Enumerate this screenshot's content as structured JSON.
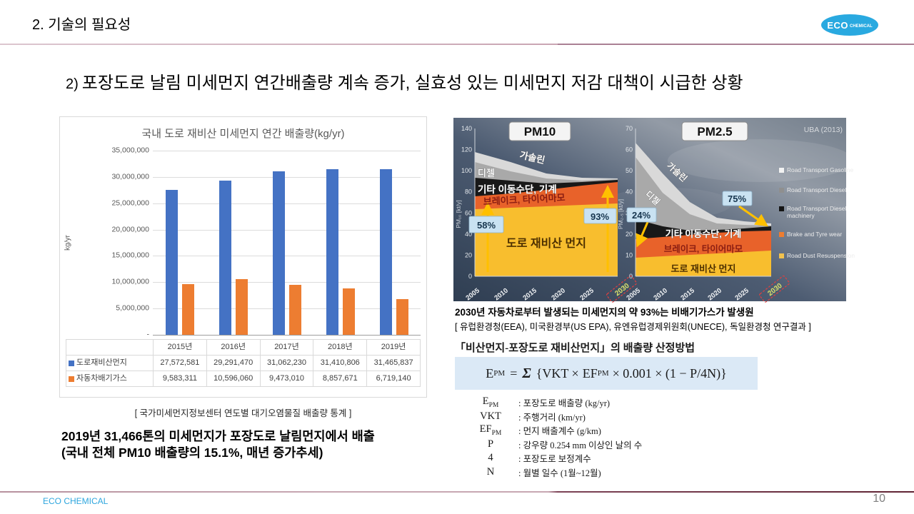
{
  "header": {
    "title": "2. 기술의 필요성",
    "logo_text": "ECO",
    "logo_sub": "CHEMICAL"
  },
  "subtitle": {
    "prefix": "2)",
    "text": "포장도로 날림 미세먼지 연간배출량 계속 증가, 실효성 있는 미세먼지 저감 대책이 시급한 상황"
  },
  "left_panel": {
    "caption": "[ 국가미세먼지정보센터 연도별 대기오염물질 배출량 통계 ]",
    "note_line1": "2019년 31,466톤의 미세먼지가 포장도로 날림먼지에서 배출",
    "note_line2": "(국내 전체 PM10 배출량의 15.1%, 매년 증가추세)"
  },
  "chart_data": [
    {
      "type": "bar",
      "title": "국내 도로 재비산 미세먼지 연간 배출량(kg/yr)",
      "ylabel": "kg/yr",
      "ylim": [
        0,
        35000000
      ],
      "ytick_labels": [
        "35,000,000",
        "30,000,000",
        "25,000,000",
        "20,000,000",
        "15,000,000",
        "10,000,000",
        "5,000,000",
        "-"
      ],
      "categories": [
        "2015년",
        "2016년",
        "2017년",
        "2018년",
        "2019년"
      ],
      "series": [
        {
          "name": "도로재비산먼지",
          "color": "#4472C4",
          "values": [
            27572581,
            29291470,
            31062230,
            31410806,
            31465837
          ],
          "formatted": [
            "27,572,581",
            "29,291,470",
            "31,062,230",
            "31,410,806",
            "31,465,837"
          ]
        },
        {
          "name": "자동차배기가스",
          "color": "#ED7D31",
          "values": [
            9583311,
            10596060,
            9473010,
            8857671,
            6719140
          ],
          "formatted": [
            "9,583,311",
            "10,596,060",
            "9,473,010",
            "8,857,671",
            "6,719,140"
          ]
        }
      ],
      "grid": true,
      "legend_position": "table-left"
    },
    {
      "type": "area",
      "title": "PM10",
      "ylabel": "PM₁₀ [kt/y]",
      "ylim": [
        0,
        140
      ],
      "x": [
        2005,
        2010,
        2015,
        2020,
        2025,
        2030
      ],
      "stacked": true,
      "series": [
        {
          "name": "Road Dust Resuspension",
          "values": [
            65,
            66,
            67,
            68,
            70,
            71
          ]
        },
        {
          "name": "Brake and Tyre wear",
          "values": [
            13,
            14,
            15,
            17,
            19,
            21
          ]
        },
        {
          "name": "Road Transport Diesel machinery",
          "values": [
            18,
            13,
            8,
            5,
            3,
            2
          ]
        },
        {
          "name": "Road Transport Diesel",
          "values": [
            15,
            10,
            6,
            3,
            2,
            1
          ]
        },
        {
          "name": "Road Transport Gasoline",
          "values": [
            10,
            7,
            4,
            2,
            1,
            0.5
          ]
        }
      ],
      "annotations": [
        "58% (2005)",
        "93% (2030)"
      ]
    },
    {
      "type": "area",
      "title": "PM2.5",
      "ylabel": "PM₂.₅ [kt/y]",
      "ylim": [
        0,
        70
      ],
      "x": [
        2005,
        2010,
        2015,
        2020,
        2025,
        2030
      ],
      "stacked": true,
      "series": [
        {
          "name": "Road Dust Resuspension",
          "values": [
            9,
            9.5,
            10,
            10.5,
            11,
            12.5
          ]
        },
        {
          "name": "Brake and Tyre wear",
          "values": [
            9,
            9.5,
            10,
            10,
            10,
            9.7
          ]
        },
        {
          "name": "Road Transport Diesel machinery",
          "values": [
            9.7,
            7,
            5,
            3.5,
            2.5,
            2
          ]
        },
        {
          "name": "Road Transport Diesel",
          "values": [
            30,
            18,
            10,
            5,
            2,
            0.5
          ]
        },
        {
          "name": "Road Transport Gasoline",
          "values": [
            7,
            5,
            3,
            2,
            1,
            0.5
          ]
        }
      ],
      "annotations": [
        "24% (2005)",
        "75% (2030)"
      ]
    }
  ],
  "right_figure": {
    "source": "UBA (2013)",
    "years": [
      "2005",
      "2010",
      "2015",
      "2020",
      "2025",
      "2030"
    ],
    "area_labels": {
      "gasoline": "가솔린",
      "diesel": "디젤",
      "other": "기타 이동수단, 기계",
      "brake": "브레이크, 타이어마모",
      "dust": "도로 재비산 먼지"
    },
    "pm10": {
      "title": "PM10",
      "axis_label": "PM₁₀ [kt/y]",
      "yticks": [
        "140",
        "120",
        "100",
        "80",
        "60",
        "40",
        "20",
        "0"
      ],
      "pct_left": "58%",
      "pct_right": "93%"
    },
    "pm25": {
      "title": "PM2.5",
      "axis_label": "PM₂.₅ [kt/y]",
      "yticks": [
        "70",
        "60",
        "50",
        "40",
        "30",
        "20",
        "10",
        "0"
      ],
      "pct_left": "24%",
      "pct_right": "75%"
    },
    "legend": [
      {
        "label": "Road Transport Gasoline",
        "lines": [
          "Road Transport Gasoline"
        ],
        "color": "#f2f2f2",
        "y": 76
      },
      {
        "label": "Road Transport Diesel",
        "lines": [
          "Road Transport Diesel"
        ],
        "color": "#8f8f8f",
        "y": 104
      },
      {
        "label": "Road Transport Diesel machinery",
        "lines": [
          "Road Transport Diesel",
          "machinery"
        ],
        "color": "#141414",
        "y": 130
      },
      {
        "label": "Brake and Tyre wear",
        "lines": [
          "Brake and Tyre wear"
        ],
        "color": "#ED7D31",
        "y": 166
      },
      {
        "label": "Road Dust Resuspension",
        "lines": [
          "Road Dust Resuspension"
        ],
        "color": "#F2C24E",
        "y": 196
      }
    ],
    "caption_bold": "2030년 자동차로부터 발생되는 미세먼지의 약 93%는 비배기가스가 발생원",
    "caption_source": "[ 유럽환경청(EEA),  미국환경부(US EPA),  유엔유럽경제위원회(UNECE),  독일환경청 연구결과 ]"
  },
  "formula_section": {
    "title": "「비산먼지-포장도로 재비산먼지」의 배출량 산정방법",
    "formula": {
      "lhs": "E",
      "lhs_sub": "PM",
      "eq": "=",
      "sigma": "Σ",
      "mid": "{VKT ×",
      "ef": "EF",
      "ef_sub": "PM",
      "tail": "× 0.001 × (1 − P/4N)}"
    },
    "definitions": [
      {
        "base": "E",
        "sub": "PM",
        "desc": ": 포장도로 배출량 (kg/yr)"
      },
      {
        "base": "VKT",
        "sub": "",
        "desc": ": 주행거리 (km/yr)"
      },
      {
        "base": "EF",
        "sub": "PM",
        "desc": ": 먼지 배출계수 (g/km)"
      },
      {
        "base": "P",
        "sub": "",
        "desc": ": 강우량 0.254 mm 이상인 날의 수"
      },
      {
        "base": "4",
        "sub": "",
        "desc": ": 포장도로 보정계수"
      },
      {
        "base": "N",
        "sub": "",
        "desc": ": 월별 일수 (1월~12월)"
      }
    ]
  },
  "footer": {
    "brand": "ECO CHEMICAL",
    "page": "10"
  }
}
